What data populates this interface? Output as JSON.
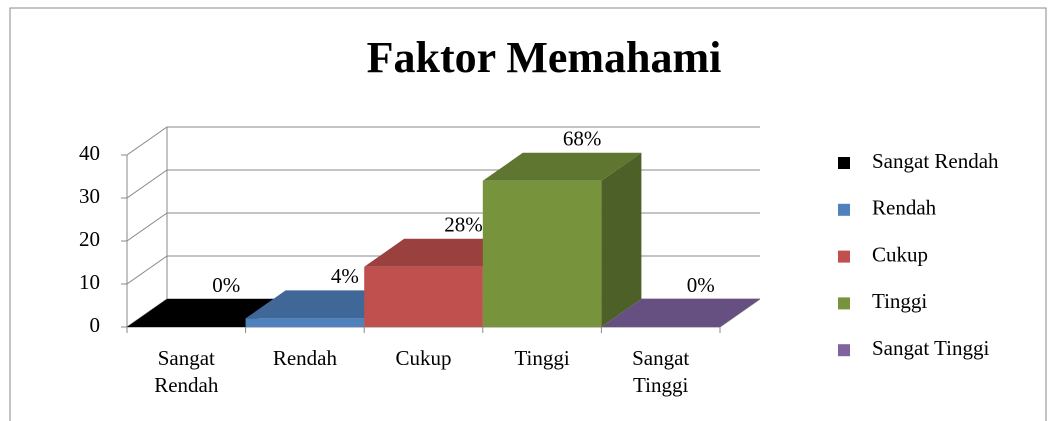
{
  "chart_data": {
    "type": "bar3d",
    "title": "Faktor Memahami",
    "categories": [
      "Sangat Rendah",
      "Rendah",
      "Cukup",
      "Tinggi",
      "Sangat Tinggi"
    ],
    "values": [
      0,
      2,
      14,
      34,
      0
    ],
    "value_labels": [
      "0%",
      "4%",
      "28%",
      "68%",
      "0%"
    ],
    "colors": [
      "#000000",
      "#4f81bd",
      "#c0504d",
      "#77933c",
      "#8064a2"
    ],
    "ylim": [
      0,
      40
    ],
    "yticks": [
      0,
      10,
      20,
      30,
      40
    ],
    "grid": true,
    "legend": "right"
  }
}
